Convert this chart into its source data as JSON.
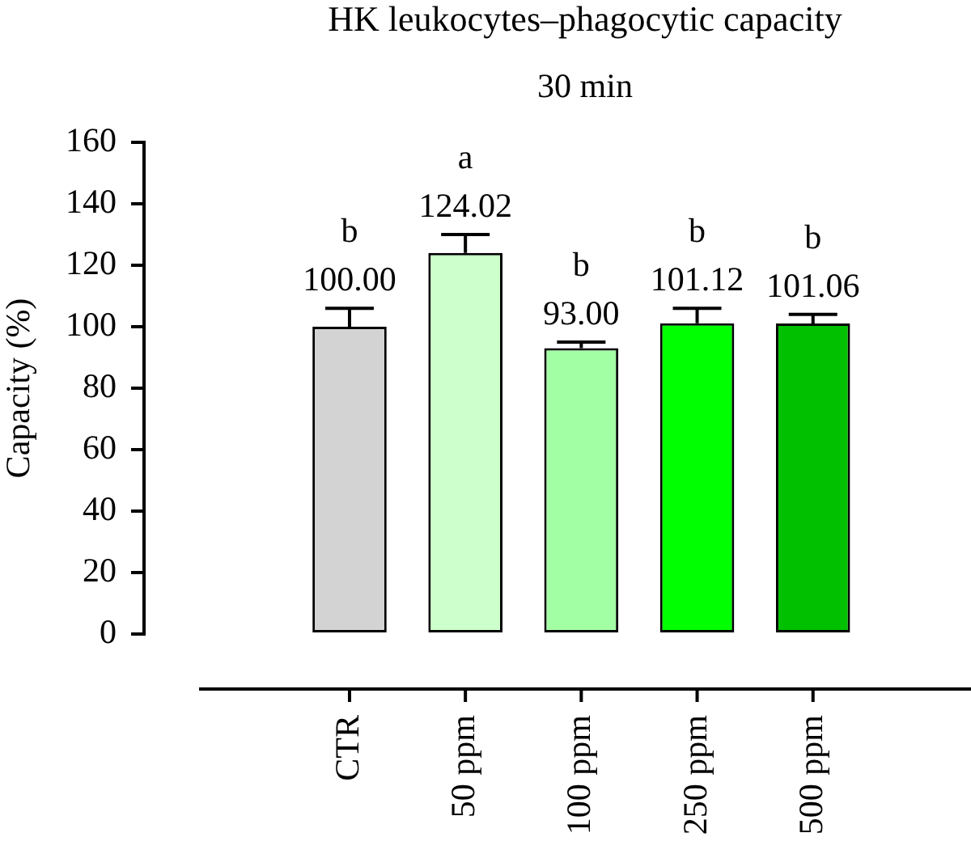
{
  "chart_data": {
    "type": "bar",
    "title": "HK leukocytes–phagocytic capacity",
    "subtitle": "30 min",
    "ylabel": "Capacity (%)",
    "categories": [
      "CTR",
      "50 ppm",
      "100 ppm",
      "250 ppm",
      "500 ppm"
    ],
    "values": [
      100.0,
      124.02,
      93.0,
      101.12,
      101.06
    ],
    "colors": [
      "#d3d3d3",
      "#ccffcc",
      "#a3ffa3",
      "#00ff00",
      "#00c000"
    ],
    "errors": [
      [
        100.0,
        106
      ],
      [
        124.02,
        130
      ],
      [
        93.0,
        95
      ],
      [
        101.12,
        106
      ],
      [
        101.06,
        104
      ]
    ],
    "value_labels": [
      "100.00",
      "124.02",
      "93.00",
      "101.12",
      "101.06"
    ],
    "ylim": [
      0,
      160
    ],
    "yticks": [
      0,
      20,
      40,
      60,
      80,
      100,
      120,
      140,
      160
    ],
    "annotations": [
      "b",
      "a",
      "b",
      "b",
      "b"
    ]
  }
}
